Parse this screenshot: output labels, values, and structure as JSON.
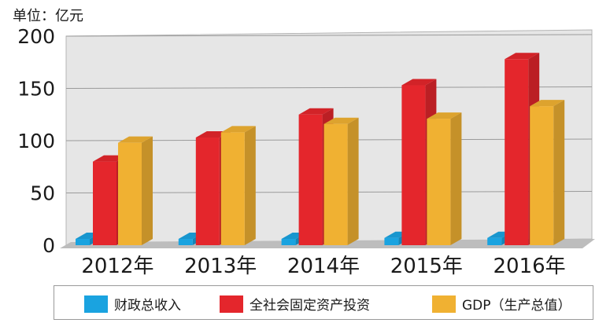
{
  "chart_data": {
    "type": "bar",
    "unit_label": "单位：亿元",
    "categories": [
      "2012年",
      "2013年",
      "2014年",
      "2015年",
      "2016年"
    ],
    "series": [
      {
        "name": "财政总收入",
        "color": "#1aa3e0",
        "values": [
          6,
          6,
          6,
          7,
          7
        ]
      },
      {
        "name": "全社会固定资产投资",
        "color": "#e4262c",
        "values": [
          80,
          103,
          125,
          153,
          178
        ]
      },
      {
        "name": "GDP（生产总值）",
        "color": "#f0b132",
        "values": [
          98,
          108,
          116,
          121,
          133
        ]
      }
    ],
    "yticks": [
      "0",
      "50",
      "100",
      "150",
      "200"
    ],
    "ylim": [
      0,
      200
    ],
    "grid": true,
    "legend_position": "bottom"
  }
}
